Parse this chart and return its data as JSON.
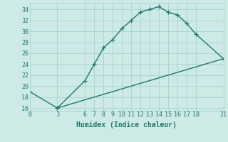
{
  "xlabel": "Humidex (Indice chaleur)",
  "background_color": "#ceeae6",
  "grid_color": "#a8d8d4",
  "line_color": "#1a7a70",
  "xlim": [
    0,
    21
  ],
  "ylim": [
    15.5,
    35.2
  ],
  "xticks": [
    0,
    3,
    6,
    7,
    8,
    9,
    10,
    11,
    12,
    13,
    14,
    15,
    16,
    17,
    18,
    21
  ],
  "yticks": [
    16,
    18,
    20,
    22,
    24,
    26,
    28,
    30,
    32,
    34
  ],
  "line1_x": [
    3,
    6,
    7,
    8,
    9,
    10,
    11,
    12,
    13,
    14,
    15,
    16,
    17,
    18,
    21
  ],
  "line1_y": [
    16,
    21,
    24,
    27,
    28.5,
    30.5,
    32,
    33.5,
    34,
    34.5,
    33.5,
    33,
    31.5,
    29.5,
    25
  ],
  "line2_x": [
    0,
    3,
    21
  ],
  "line2_y": [
    19,
    16,
    25
  ],
  "marker": "+",
  "markersize": 4,
  "linewidth": 1.0,
  "xlabel_fontsize": 7,
  "tick_fontsize": 6
}
